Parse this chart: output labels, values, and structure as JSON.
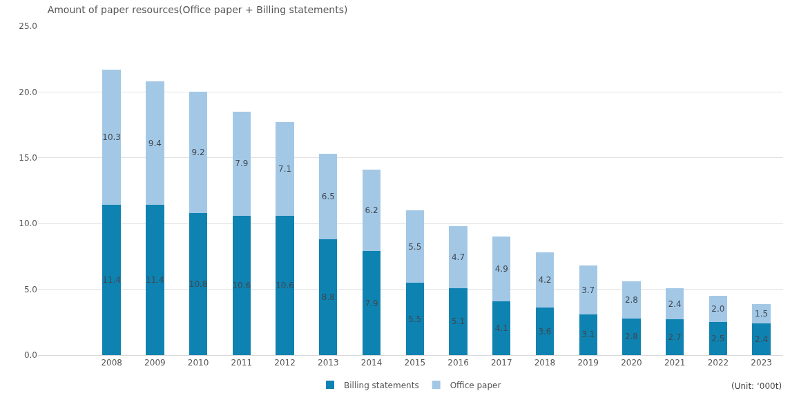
{
  "chart_data": {
    "type": "bar",
    "stacked": true,
    "title": "Amount of paper resources(Office paper + Billing statements)",
    "categories": [
      null,
      "2008",
      "2009",
      "2010",
      "2011",
      "2012",
      "2013",
      "2014",
      "2015",
      "2016",
      "2017",
      "2018",
      "2019",
      "2020",
      "2021",
      "2022",
      "2023"
    ],
    "series": [
      {
        "name": "Billing statements",
        "color": "#0e82b1",
        "values": [
          null,
          11.4,
          11.4,
          10.8,
          10.6,
          10.6,
          8.8,
          7.9,
          5.5,
          5.1,
          4.1,
          3.6,
          3.1,
          2.8,
          2.7,
          2.5,
          2.4
        ],
        "value_labels": [
          null,
          "11.4",
          "11.4",
          "10.8",
          "10.6",
          "10.6",
          "8.8",
          "7.9",
          "5.5",
          "5.1",
          "4.1",
          "3.6",
          "3.1",
          "2.8",
          "2.7",
          "2.5",
          "2.4"
        ]
      },
      {
        "name": "Office paper",
        "color": "#a3c8e6",
        "values": [
          null,
          10.3,
          9.4,
          9.2,
          7.9,
          7.1,
          6.5,
          6.2,
          5.5,
          4.7,
          4.9,
          4.2,
          3.7,
          2.8,
          2.4,
          2.0,
          1.5
        ],
        "value_labels": [
          null,
          "10.3",
          "9.4",
          "9.2",
          "7.9",
          "7.1",
          "6.5",
          "6.2",
          "5.5",
          "4.7",
          "4.9",
          "4.2",
          "3.7",
          "2.8",
          "2.4",
          "2.0",
          "1.5"
        ]
      }
    ],
    "ylim": [
      0,
      25
    ],
    "yticks": [
      {
        "value": 0,
        "label": "0.0"
      },
      {
        "value": 5,
        "label": "5.0"
      },
      {
        "value": 10,
        "label": "10.0"
      },
      {
        "value": 15,
        "label": "15.0"
      },
      {
        "value": 20,
        "label": "20.0"
      },
      {
        "value": 25,
        "label": "25.0"
      }
    ],
    "grid": "y",
    "legend": "bottom",
    "annotations": [
      "(Unit: ‘000t)"
    ]
  }
}
